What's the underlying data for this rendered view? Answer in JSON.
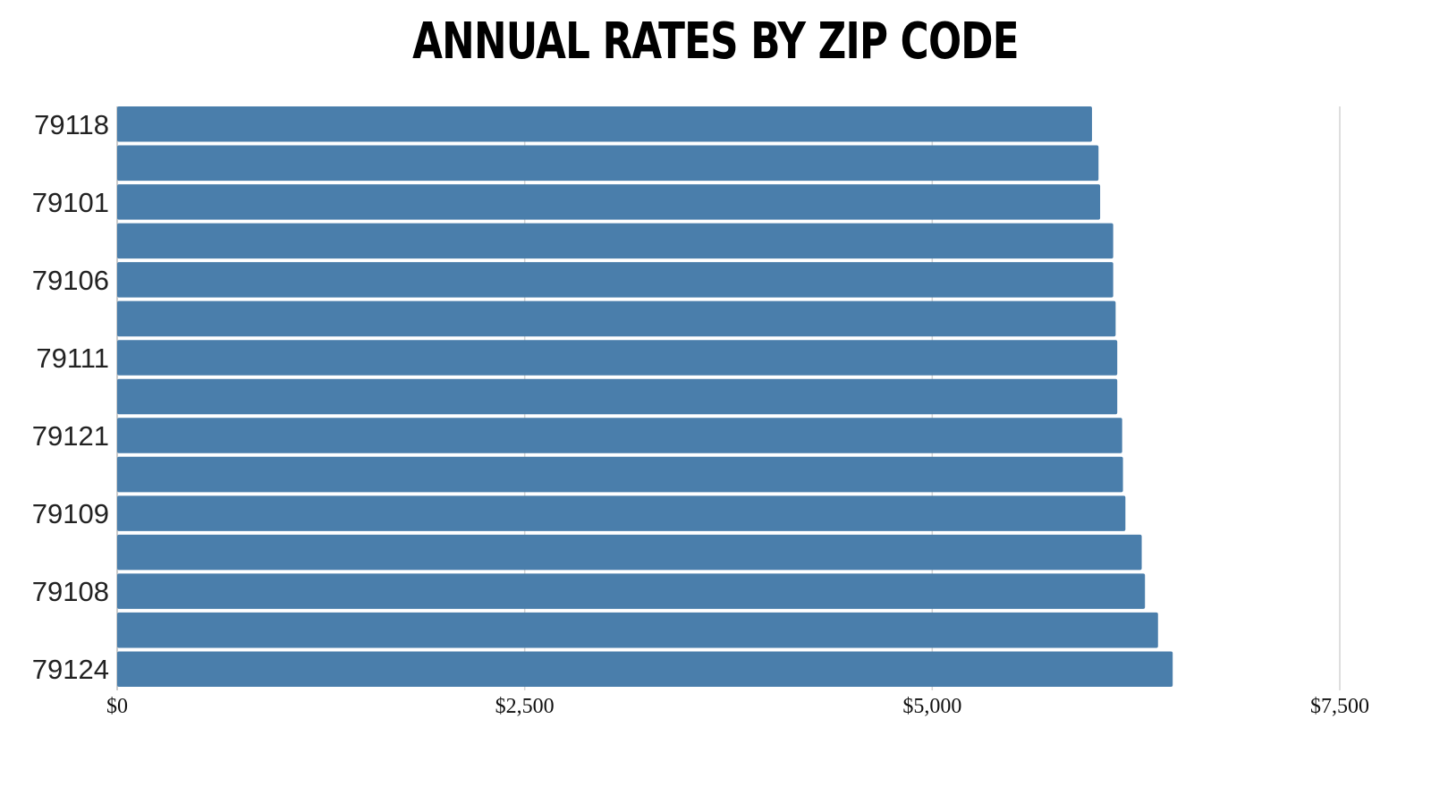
{
  "chart_data": {
    "type": "bar",
    "orientation": "horizontal",
    "title": "ANNUAL RATES BY ZIP CODE",
    "xlabel": "",
    "ylabel": "",
    "categories": [
      "79118",
      "",
      "79101",
      "",
      "79106",
      "",
      "79111",
      "",
      "79121",
      "",
      "79109",
      "",
      "79108",
      "",
      "79124"
    ],
    "values": [
      5980,
      6020,
      6030,
      6110,
      6110,
      6125,
      6135,
      6135,
      6165,
      6170,
      6185,
      6285,
      6305,
      6385,
      6475
    ],
    "xlim": [
      0,
      7500
    ],
    "x_ticks": [
      0,
      2500,
      5000,
      7500
    ],
    "x_tick_labels": [
      "$0",
      "$2,500",
      "$5,000",
      "$7,500"
    ],
    "grid": true,
    "legend": "none",
    "colors": {
      "bar": "#4a7eab",
      "grid": "#d4d4d4"
    }
  }
}
